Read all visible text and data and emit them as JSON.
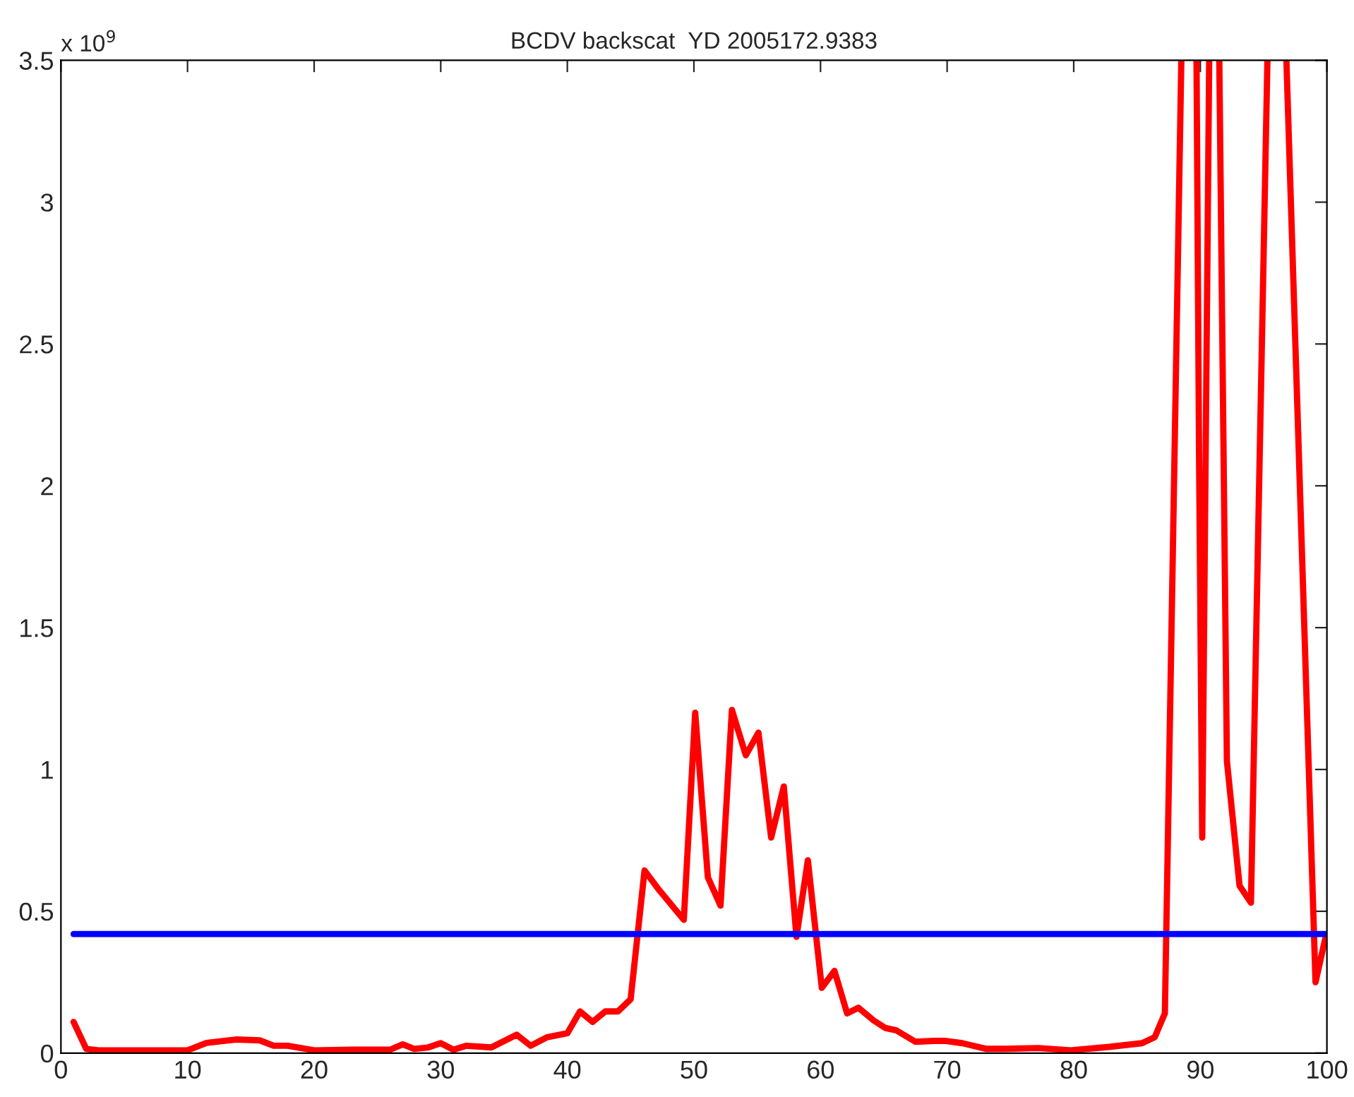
{
  "chart_data": {
    "type": "line",
    "title": "BCDV backscat  YD 2005172.9383",
    "annotations": [
      "x 10$^{9}$"
    ],
    "series": [
      {
        "color": "#ff0000",
        "x": [
          1,
          2,
          3,
          5,
          7,
          10,
          11.5,
          13.8,
          15.7,
          16.8,
          17.9,
          20,
          23,
          26,
          27,
          27.9,
          29,
          30,
          31,
          32,
          34,
          36,
          37.1,
          38.4,
          40,
          41,
          42,
          43,
          44,
          45,
          46.1,
          47.2,
          49.2,
          50.1,
          51.1,
          52.1,
          53,
          54.1,
          55.1,
          56.1,
          57.1,
          58.1,
          59,
          60.1,
          61.1,
          62.1,
          63,
          64.2,
          65.1,
          66,
          67.5,
          69,
          69.9,
          71.2,
          73.1,
          74.6,
          77.2,
          79.8,
          82.8,
          85.4,
          86.4,
          87.2,
          88.5,
          89,
          89.7,
          89.9,
          90.15,
          90.7,
          91.1,
          91.5,
          92.1,
          93.1,
          94,
          95.3,
          96,
          96.8,
          99.1,
          99.9
        ],
        "values": [
          0.11,
          0.015,
          0.01,
          0.01,
          0.01,
          0.01,
          0.036,
          0.048,
          0.045,
          0.026,
          0.026,
          0.01,
          0.012,
          0.012,
          0.031,
          0.015,
          0.02,
          0.035,
          0.012,
          0.026,
          0.02,
          0.065,
          0.026,
          0.056,
          0.07,
          0.147,
          0.11,
          0.147,
          0.147,
          0.19,
          0.644,
          0.578,
          0.47,
          1.2,
          0.62,
          0.52,
          1.21,
          1.05,
          1.13,
          0.76,
          0.94,
          0.41,
          0.68,
          0.23,
          0.29,
          0.14,
          0.16,
          0.115,
          0.089,
          0.08,
          0.04,
          0.043,
          0.043,
          0.035,
          0.015,
          0.015,
          0.018,
          0.01,
          0.022,
          0.035,
          0.056,
          0.14,
          3.5,
          null,
          3.5,
          2.11,
          0.76,
          3.5,
          null,
          3.5,
          1.03,
          0.59,
          0.53,
          3.5,
          null,
          3.5,
          0.25,
          0.41
        ]
      },
      {
        "color": "#0000ff",
        "x": [
          1,
          100
        ],
        "values": [
          0.42,
          0.42
        ]
      }
    ],
    "xlim": [
      0,
      100
    ],
    "xticks": [
      0,
      10,
      20,
      30,
      40,
      50,
      60,
      70,
      80,
      90,
      100
    ],
    "ylim": [
      0,
      3.5
    ],
    "yticks": [
      0,
      0.5,
      1,
      1.5,
      2,
      2.5,
      3,
      3.5
    ],
    "grid": false,
    "legend": false,
    "line_style": "solid",
    "marker": "none"
  }
}
